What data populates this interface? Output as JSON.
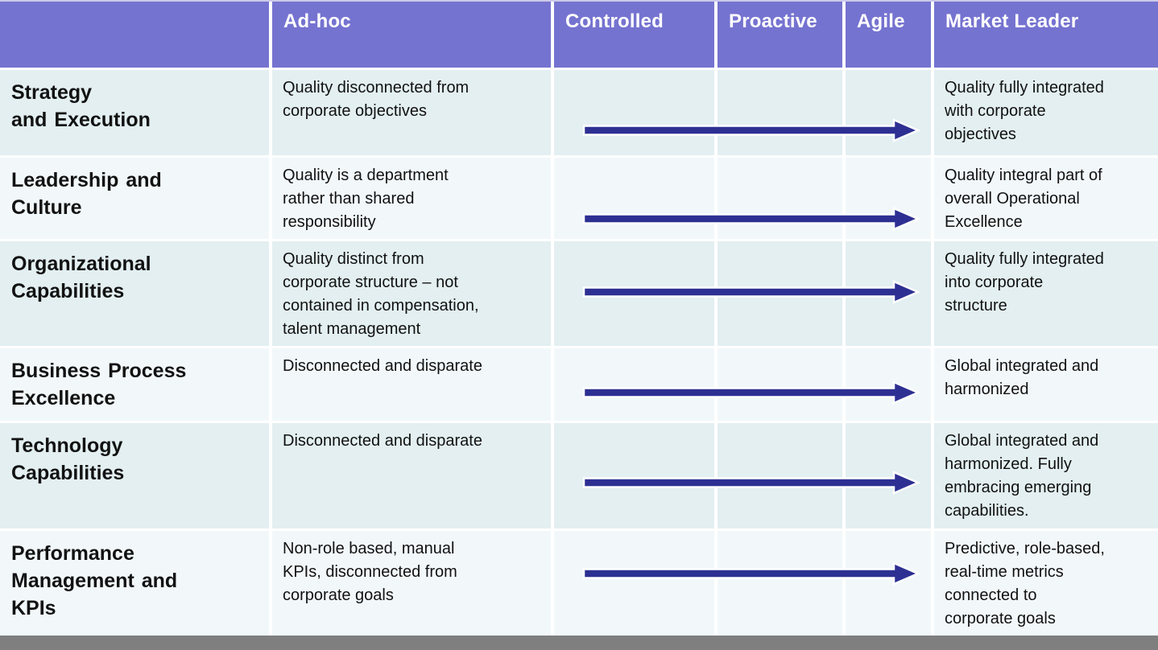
{
  "header": {
    "columns": [
      "",
      "Ad-hoc",
      "Controlled",
      "Proactive",
      "Agile",
      "Market Leader"
    ]
  },
  "rows": [
    {
      "label": "Strategy\nand Execution",
      "adhoc": "Quality disconnected from\ncorporate objectives",
      "market_leader": "Quality fully integrated\nwith corporate\nobjectives"
    },
    {
      "label": "Leadership and\nCulture",
      "adhoc": "Quality is a department\nrather than shared\nresponsibility",
      "market_leader": "Quality integral part of\noverall Operational\nExcellence"
    },
    {
      "label": "Organizational\nCapabilities",
      "adhoc": "Quality distinct from\ncorporate structure – not\ncontained in compensation,\ntalent management",
      "market_leader": "Quality fully integrated\ninto corporate\nstructure"
    },
    {
      "label": "Business Process\nExcellence",
      "adhoc": "Disconnected and disparate",
      "market_leader": "Global integrated and\nharmonized"
    },
    {
      "label": "Technology\nCapabilities",
      "adhoc": "Disconnected and disparate",
      "market_leader": "Global integrated and\nharmonized. Fully\nembracing emerging\ncapabilities."
    },
    {
      "label": "Performance\nManagement and\nKPIs",
      "adhoc": "Non-role based, manual\nKPIs, disconnected from\ncorporate goals",
      "market_leader": "Predictive, role-based,\nreal-time metrics\nconnected to\ncorporate goals"
    }
  ],
  "colors": {
    "header_bg": "#7573d0",
    "header_text": "#ffffff",
    "arrow_fill": "#2d3092",
    "arrow_outline": "#ffffff",
    "row_band_dark": "#e3eff1",
    "row_band_light": "#f2f8fa",
    "bottom_bar": "#7f7f7f"
  }
}
